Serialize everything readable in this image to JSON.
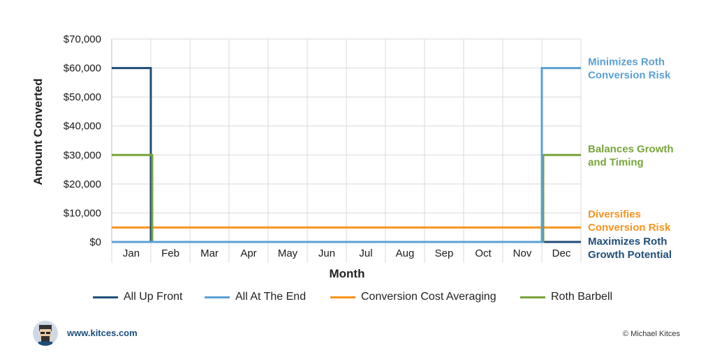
{
  "chart_data": {
    "type": "line",
    "categories": [
      "Jan",
      "Feb",
      "Mar",
      "Apr",
      "May",
      "Jun",
      "Jul",
      "Aug",
      "Sep",
      "Oct",
      "Nov",
      "Dec"
    ],
    "xlabel": "Month",
    "ylabel": "Amount Converted",
    "ylim": [
      0,
      70000
    ],
    "yticks": [
      "$0",
      "$10,000",
      "$20,000",
      "$30,000",
      "$40,000",
      "$50,000",
      "$60,000",
      "$70,000"
    ],
    "grid": true,
    "legend_position": "bottom",
    "series": [
      {
        "name": "All Up Front",
        "color": "#1f4e79",
        "values": [
          60000,
          0,
          0,
          0,
          0,
          0,
          0,
          0,
          0,
          0,
          0,
          0
        ]
      },
      {
        "name": "All At The End",
        "color": "#5aa0d6",
        "values": [
          0,
          0,
          0,
          0,
          0,
          0,
          0,
          0,
          0,
          0,
          0,
          60000
        ]
      },
      {
        "name": "Conversion Cost Averaging",
        "color": "#f7941d",
        "values": [
          5000,
          5000,
          5000,
          5000,
          5000,
          5000,
          5000,
          5000,
          5000,
          5000,
          5000,
          5000
        ]
      },
      {
        "name": "Roth Barbell",
        "color": "#77a43b",
        "values": [
          30000,
          0,
          0,
          0,
          0,
          0,
          0,
          0,
          0,
          0,
          0,
          30000
        ]
      }
    ],
    "annotations": [
      {
        "series": "All At The End",
        "line1": "Minimizes Roth",
        "line2": "Conversion Risk",
        "color": "#5aa0d6"
      },
      {
        "series": "Roth Barbell",
        "line1": "Balances Growth",
        "line2": "and Timing",
        "color": "#77a43b"
      },
      {
        "series": "Conversion Cost Averaging",
        "line1": "Diversifies",
        "line2": "Conversion Risk",
        "color": "#f7941d"
      },
      {
        "series": "All Up Front",
        "line1": "Maximizes Roth",
        "line2": "Growth Potential",
        "color": "#1f4e79"
      }
    ]
  },
  "footer": {
    "url": "www.kitces.com",
    "copyright": "© Michael Kitces"
  }
}
